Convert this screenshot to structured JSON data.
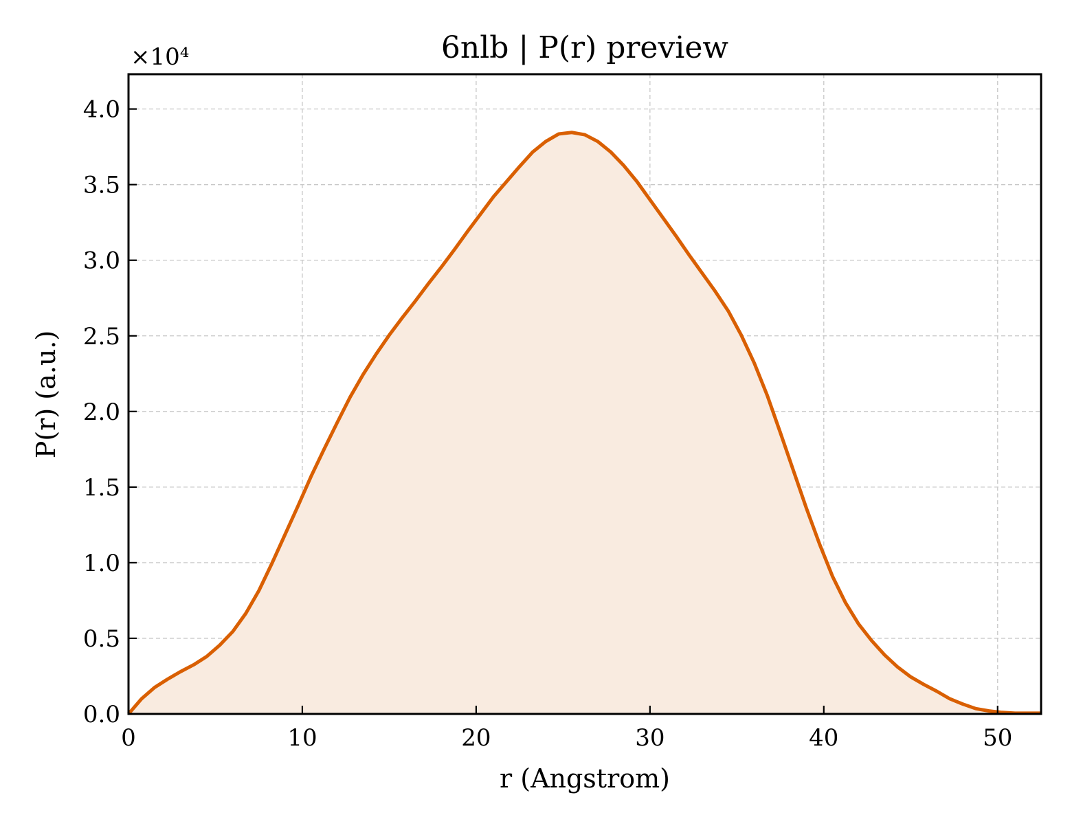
{
  "chart_data": {
    "type": "area",
    "title": "6nlb | P(r) preview",
    "xlabel": "r (Angstrom)",
    "ylabel": "P(r) (a.u.)",
    "y_multiplier_text": "×10⁴",
    "xlim": [
      0,
      52.5
    ],
    "ylim": [
      0,
      42300
    ],
    "xticks": [
      0,
      10,
      20,
      30,
      40,
      50
    ],
    "xtick_labels": [
      "0",
      "10",
      "20",
      "30",
      "40",
      "50"
    ],
    "yticks": [
      0,
      5000,
      10000,
      15000,
      20000,
      25000,
      30000,
      35000,
      40000
    ],
    "ytick_labels": [
      "0.0",
      "0.5",
      "1.0",
      "1.5",
      "2.0",
      "2.5",
      "3.0",
      "3.5",
      "4.0"
    ],
    "grid": true,
    "line_color": "#d95f02",
    "fill_color": "#f9ebe0",
    "series": [
      {
        "x": [
          0,
          0.75,
          1.5,
          2.25,
          3.0,
          3.75,
          4.5,
          5.25,
          6.0,
          6.75,
          7.5,
          8.25,
          9.0,
          9.75,
          10.5,
          11.25,
          12.0,
          12.75,
          13.5,
          14.25,
          15.0,
          15.75,
          16.5,
          17.25,
          18.0,
          18.75,
          19.5,
          20.25,
          21.0,
          21.75,
          22.5,
          23.25,
          24.0,
          24.75,
          25.5,
          26.25,
          27.0,
          27.75,
          28.5,
          29.25,
          30.0,
          30.75,
          31.5,
          32.25,
          33.0,
          33.75,
          34.5,
          35.25,
          36.0,
          36.75,
          37.5,
          38.25,
          39.0,
          39.75,
          40.5,
          41.25,
          42.0,
          42.75,
          43.5,
          44.25,
          45.0,
          45.75,
          46.5,
          47.25,
          48.0,
          48.75,
          49.5,
          50.25,
          51.0,
          51.75,
          52.5
        ],
        "y": [
          0,
          1000,
          1750,
          2300,
          2800,
          3250,
          3800,
          4550,
          5450,
          6650,
          8150,
          9950,
          11850,
          13750,
          15700,
          17500,
          19250,
          20950,
          22450,
          23800,
          25050,
          26200,
          27300,
          28450,
          29550,
          30700,
          31900,
          33050,
          34200,
          35200,
          36200,
          37150,
          37850,
          38350,
          38450,
          38300,
          37850,
          37150,
          36250,
          35200,
          34000,
          32800,
          31600,
          30350,
          29150,
          27950,
          26650,
          25050,
          23200,
          21050,
          18600,
          16100,
          13600,
          11250,
          9100,
          7350,
          5950,
          4850,
          3900,
          3100,
          2450,
          1950,
          1500,
          1000,
          650,
          350,
          200,
          100,
          50,
          50,
          50
        ]
      }
    ]
  }
}
